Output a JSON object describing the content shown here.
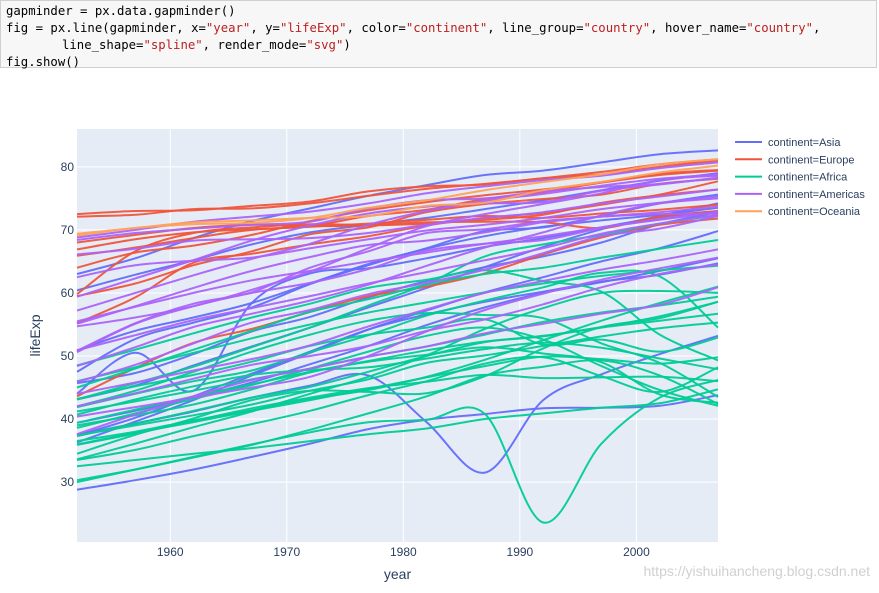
{
  "code": {
    "line1": "gapminder = px.data.gapminder()",
    "line2": {
      "prefix": "fig = px.line(gapminder, x=",
      "x": "\"year\"",
      "sep1": ", y=",
      "y": "\"lifeExp\"",
      "sep2": ", color=",
      "color": "\"continent\"",
      "sep3": ", line_group=",
      "line_group": "\"country\"",
      "sep4": ", hover_name=",
      "hover_name": "\"country\"",
      "suffix": ","
    },
    "line3": {
      "prefix": "line_shape=",
      "shape": "\"spline\"",
      "sep": ", render_mode=",
      "mode": "\"svg\"",
      "suffix": ")"
    },
    "line4": "fig.show()"
  },
  "watermark": "https://yishuihancheng.blog.csdn.net",
  "colors": {
    "plot_bg": "#e5ecf6",
    "grid": "#ffffff",
    "axis_text": "#2a3f5f",
    "Asia": "#636efa",
    "Europe": "#ef553b",
    "Africa": "#00cc96",
    "Americas": "#ab63fa",
    "Oceania": "#ffa15a"
  },
  "chart_data": {
    "type": "line",
    "title": "",
    "xlabel": "year",
    "ylabel": "lifeExp",
    "xlim": [
      1952,
      2007
    ],
    "ylim": [
      20.5,
      86
    ],
    "xticks": [
      1960,
      1970,
      1980,
      1990,
      2000
    ],
    "yticks": [
      30,
      40,
      50,
      60,
      70,
      80
    ],
    "grid": true,
    "line_shape": "spline",
    "x": [
      1952,
      1957,
      1962,
      1967,
      1972,
      1977,
      1982,
      1987,
      1992,
      1997,
      2002,
      2007
    ],
    "legend": {
      "placement": "right",
      "title": ""
    },
    "series": [
      {
        "name": "continent=Asia",
        "color_key": "Asia",
        "lines": [
          [
            28.8,
            30.3,
            32.0,
            34.0,
            36.1,
            38.4,
            39.9,
            40.8,
            41.7,
            41.8,
            42.1,
            43.8
          ],
          [
            37.5,
            39.3,
            41.2,
            43.4,
            45.3,
            46.9,
            39.5,
            31.5,
            43.0,
            47.1,
            50.3,
            53.2
          ],
          [
            50.9,
            54.0,
            56.1,
            58.4,
            61.5,
            64.6,
            67.0,
            69.0,
            70.5,
            71.5,
            72.4,
            73.5
          ],
          [
            63.0,
            65.5,
            68.7,
            71.4,
            73.4,
            75.4,
            77.1,
            78.7,
            79.4,
            80.7,
            82.0,
            82.6
          ],
          [
            60.4,
            62.9,
            65.2,
            67.7,
            69.6,
            70.8,
            71.9,
            73.3,
            74.7,
            76.3,
            77.8,
            79.0
          ],
          [
            44.0,
            50.5,
            44.5,
            58.4,
            63.1,
            63.9,
            65.5,
            67.3,
            68.7,
            70.4,
            72.0,
            73.0
          ],
          [
            37.4,
            40.2,
            43.6,
            47.2,
            50.7,
            54.2,
            56.6,
            58.6,
            60.2,
            61.8,
            62.9,
            64.7
          ],
          [
            47.5,
            52.7,
            55.3,
            57.7,
            61.4,
            64.4,
            67.1,
            69.8,
            70.4,
            72.2,
            74.2,
            75.6
          ],
          [
            36.3,
            39.6,
            43.0,
            46.9,
            50.5,
            54.2,
            57.2,
            60.1,
            62.5,
            65.0,
            67.1,
            69.8
          ],
          [
            45.7,
            47.3,
            50.3,
            53.9,
            56.2,
            59.3,
            61.9,
            64.1,
            65.8,
            68.0,
            70.9,
            72.8
          ],
          [
            43.1,
            45.3,
            48.5,
            51.5,
            54.5,
            57.7,
            60.8,
            64.1,
            67.3,
            70.1,
            72.2,
            74.2
          ],
          [
            39.4,
            41.3,
            43.4,
            45.8,
            48.7,
            51.6,
            54.9,
            57.7,
            60.0,
            61.7,
            63.5,
            65.5
          ]
        ]
      },
      {
        "name": "continent=Europe",
        "color_key": "Europe",
        "lines": [
          [
            72.5,
            73.0,
            73.1,
            73.8,
            74.5,
            76.1,
            76.9,
            77.2,
            78.2,
            78.8,
            80.0,
            81.0
          ],
          [
            72.1,
            72.4,
            73.3,
            73.4,
            74.2,
            75.4,
            76.5,
            77.3,
            78.2,
            79.2,
            80.4,
            81.2
          ],
          [
            66.9,
            68.5,
            69.6,
            70.1,
            70.6,
            72.2,
            73.2,
            74.9,
            76.0,
            77.5,
            78.7,
            79.4
          ],
          [
            68.0,
            69.2,
            70.3,
            70.8,
            70.6,
            70.7,
            71.0,
            71.6,
            72.4,
            74.3,
            75.5,
            76.4
          ],
          [
            59.8,
            66.6,
            69.5,
            70.4,
            70.9,
            70.8,
            71.2,
            71.3,
            71.2,
            70.3,
            72.1,
            73.0
          ],
          [
            55.2,
            59.3,
            64.8,
            66.2,
            67.7,
            69.0,
            70.7,
            71.9,
            72.7,
            74.0,
            75.6,
            77.7
          ],
          [
            59.5,
            61.5,
            64.4,
            66.6,
            69.3,
            70.4,
            72.8,
            74.1,
            74.9,
            75.6,
            77.3,
            78.1
          ],
          [
            43.6,
            48.1,
            52.1,
            54.3,
            57.0,
            59.5,
            61.0,
            63.1,
            66.1,
            68.8,
            70.8,
            71.8
          ],
          [
            65.9,
            67.2,
            68.7,
            70.0,
            70.5,
            71.0,
            71.6,
            72.2,
            71.9,
            72.6,
            73.2,
            74.0
          ],
          [
            64.0,
            66.4,
            67.5,
            69.2,
            71.4,
            73.1,
            74.4,
            75.5,
            76.4,
            77.6,
            78.9,
            79.5
          ]
        ]
      },
      {
        "name": "continent=Africa",
        "color_key": "Africa",
        "lines": [
          [
            30.0,
            32.0,
            34.0,
            36.0,
            37.9,
            39.5,
            39.9,
            40.8,
            23.6,
            36.1,
            43.4,
            46.2
          ],
          [
            30.3,
            32.0,
            33.9,
            35.9,
            38.3,
            40.9,
            43.6,
            46.9,
            48.3,
            49.3,
            46.9,
            42.4
          ],
          [
            42.0,
            44.5,
            47.5,
            50.7,
            53.4,
            55.6,
            56.8,
            56.5,
            56.0,
            52.0,
            48.9,
            43.5
          ],
          [
            38.6,
            40.9,
            43.2,
            45.4,
            48.0,
            50.7,
            53.2,
            54.5,
            52.6,
            48.4,
            44.6,
            42.1
          ],
          [
            48.5,
            51.0,
            53.6,
            56.1,
            58.3,
            60.8,
            62.1,
            63.6,
            61.9,
            60.2,
            53.4,
            49.3
          ],
          [
            43.1,
            45.7,
            48.3,
            51.4,
            54.5,
            58.0,
            61.4,
            65.8,
            67.7,
            69.2,
            71.0,
            72.3
          ],
          [
            41.9,
            44.0,
            46.0,
            47.7,
            50.6,
            53.3,
            56.4,
            58.8,
            60.9,
            63.2,
            62.6,
            54.5
          ],
          [
            39.0,
            40.6,
            42.3,
            44.7,
            47.4,
            49.1,
            50.2,
            51.4,
            50.4,
            49.0,
            43.9,
            42.6
          ],
          [
            34.5,
            37.5,
            40.1,
            43.0,
            44.5,
            44.3,
            44.1,
            46.8,
            51.2,
            54.6,
            56.0,
            58.6
          ],
          [
            33.6,
            36.1,
            38.7,
            41.2,
            44.0,
            46.7,
            50.1,
            54.3,
            57.6,
            60.0,
            60.3,
            60.0
          ],
          [
            37.3,
            39.3,
            41.3,
            43.4,
            45.1,
            47.5,
            50.0,
            52.2,
            53.1,
            54.5,
            55.6,
            56.7
          ],
          [
            35.9,
            37.7,
            39.7,
            41.7,
            43.4,
            44.9,
            45.9,
            47.0,
            46.5,
            46.6,
            46.7,
            46.0
          ],
          [
            40.7,
            43.1,
            45.2,
            47.0,
            47.8,
            48.2,
            49.6,
            51.1,
            52.1,
            51.3,
            49.6,
            47.9
          ],
          [
            43.2,
            45.2,
            47.0,
            49.1,
            51.6,
            53.4,
            54.5,
            55.8,
            51.8,
            52.6,
            50.7,
            52.9
          ],
          [
            32.5,
            33.5,
            34.5,
            35.4,
            36.5,
            37.6,
            38.5,
            40.0,
            40.9,
            41.8,
            42.5,
            44.7
          ],
          [
            39.4,
            41.5,
            43.6,
            45.5,
            47.5,
            49.2,
            50.9,
            52.3,
            53.2,
            54.6,
            56.3,
            58.6
          ],
          [
            36.5,
            38.0,
            39.8,
            41.4,
            43.2,
            44.6,
            46.7,
            49.4,
            52.5,
            55.6,
            58.4,
            61.0
          ],
          [
            45.0,
            48.0,
            51.0,
            54.0,
            57.0,
            59.0,
            61.3,
            63.0,
            64.0,
            65.6,
            67.0,
            68.4
          ],
          [
            37.4,
            39.0,
            40.6,
            42.3,
            44.5,
            46.3,
            48.9,
            50.1,
            51.6,
            53.1,
            54.4,
            55.3
          ],
          [
            33.5,
            35.1,
            37.3,
            39.2,
            41.3,
            43.8,
            46.0,
            48.8,
            49.8,
            46.8,
            44.3,
            48.2
          ],
          [
            41.2,
            42.8,
            44.5,
            46.3,
            48.0,
            49.9,
            51.5,
            53.4,
            55.4,
            56.9,
            58.0,
            59.4
          ],
          [
            46.0,
            48.2,
            50.5,
            52.8,
            55.0,
            56.9,
            58.5,
            60.1,
            61.5,
            62.7,
            63.6,
            64.3
          ],
          [
            36.0,
            37.8,
            39.5,
            41.3,
            43.0,
            44.8,
            46.6,
            48.4,
            49.9,
            49.5,
            48.8,
            49.8
          ]
        ]
      },
      {
        "name": "continent=Americas",
        "color_key": "Americas",
        "lines": [
          [
            62.5,
            64.4,
            65.1,
            65.6,
            67.1,
            68.5,
            69.9,
            70.8,
            71.9,
            73.3,
            74.3,
            75.3
          ],
          [
            40.4,
            41.9,
            43.4,
            45.0,
            46.7,
            50.0,
            53.9,
            57.3,
            59.9,
            62.1,
            63.9,
            65.6
          ],
          [
            50.9,
            53.3,
            55.7,
            57.6,
            59.5,
            61.5,
            63.3,
            65.2,
            67.1,
            69.4,
            71.0,
            72.4
          ],
          [
            68.8,
            70.0,
            71.3,
            72.1,
            72.9,
            74.2,
            75.8,
            76.9,
            77.9,
            78.6,
            79.8,
            80.7
          ],
          [
            54.7,
            56.1,
            57.9,
            60.5,
            63.4,
            67.1,
            70.6,
            72.5,
            74.1,
            75.8,
            77.9,
            78.6
          ],
          [
            50.6,
            55.1,
            57.9,
            60.0,
            61.6,
            63.8,
            66.7,
            67.8,
            68.4,
            70.3,
            71.7,
            72.9
          ],
          [
            57.2,
            60.0,
            62.8,
            65.4,
            67.8,
            70.8,
            73.0,
            74.6,
            75.7,
            77.0,
            78.1,
            78.8
          ],
          [
            59.4,
            62.3,
            65.2,
            68.3,
            70.7,
            72.6,
            73.7,
            74.2,
            74.4,
            76.2,
            77.2,
            78.3
          ],
          [
            45.9,
            48.6,
            52.0,
            55.3,
            57.3,
            59.8,
            61.6,
            63.7,
            66.3,
            69.0,
            70.2,
            72.2
          ],
          [
            48.4,
            51.4,
            54.6,
            56.7,
            58.8,
            61.3,
            64.3,
            67.2,
            69.6,
            72.3,
            74.2,
            75.0
          ],
          [
            37.6,
            40.7,
            43.6,
            46.2,
            48.0,
            49.9,
            51.5,
            53.6,
            55.1,
            56.7,
            58.1,
            60.9
          ],
          [
            42.0,
            44.1,
            46.4,
            48.6,
            50.0,
            51.6,
            54.0,
            55.8,
            58.2,
            60.9,
            63.0,
            64.5
          ],
          [
            50.8,
            55.2,
            58.3,
            60.1,
            64.0,
            66.6,
            69.5,
            70.1,
            71.4,
            72.1,
            72.5,
            72.6
          ],
          [
            68.4,
            69.5,
            70.2,
            70.8,
            71.3,
            73.4,
            74.7,
            75.0,
            76.1,
            76.8,
            77.3,
            78.2
          ],
          [
            66.1,
            67.0,
            68.3,
            68.5,
            68.7,
            69.5,
            70.8,
            71.9,
            72.8,
            74.2,
            75.3,
            76.4
          ],
          [
            55.1,
            57.9,
            60.8,
            63.5,
            65.7,
            67.6,
            68.3,
            69.6,
            71.2,
            72.1,
            72.8,
            73.7
          ],
          [
            44.0,
            45.8,
            47.7,
            49.5,
            51.7,
            54.7,
            57.4,
            60.0,
            61.9,
            63.7,
            65.2,
            66.9
          ],
          [
            55.5,
            57.8,
            60.0,
            62.0,
            63.5,
            65.0,
            66.4,
            67.8,
            69.0,
            70.4,
            71.6,
            72.8
          ]
        ]
      },
      {
        "name": "continent=Oceania",
        "color_key": "Oceania",
        "lines": [
          [
            69.1,
            70.3,
            70.9,
            71.1,
            71.9,
            73.5,
            74.7,
            76.3,
            77.6,
            78.8,
            80.4,
            81.2
          ],
          [
            69.4,
            70.3,
            71.2,
            71.5,
            71.9,
            72.2,
            73.8,
            74.3,
            76.3,
            77.6,
            79.1,
            80.2
          ]
        ]
      }
    ]
  }
}
